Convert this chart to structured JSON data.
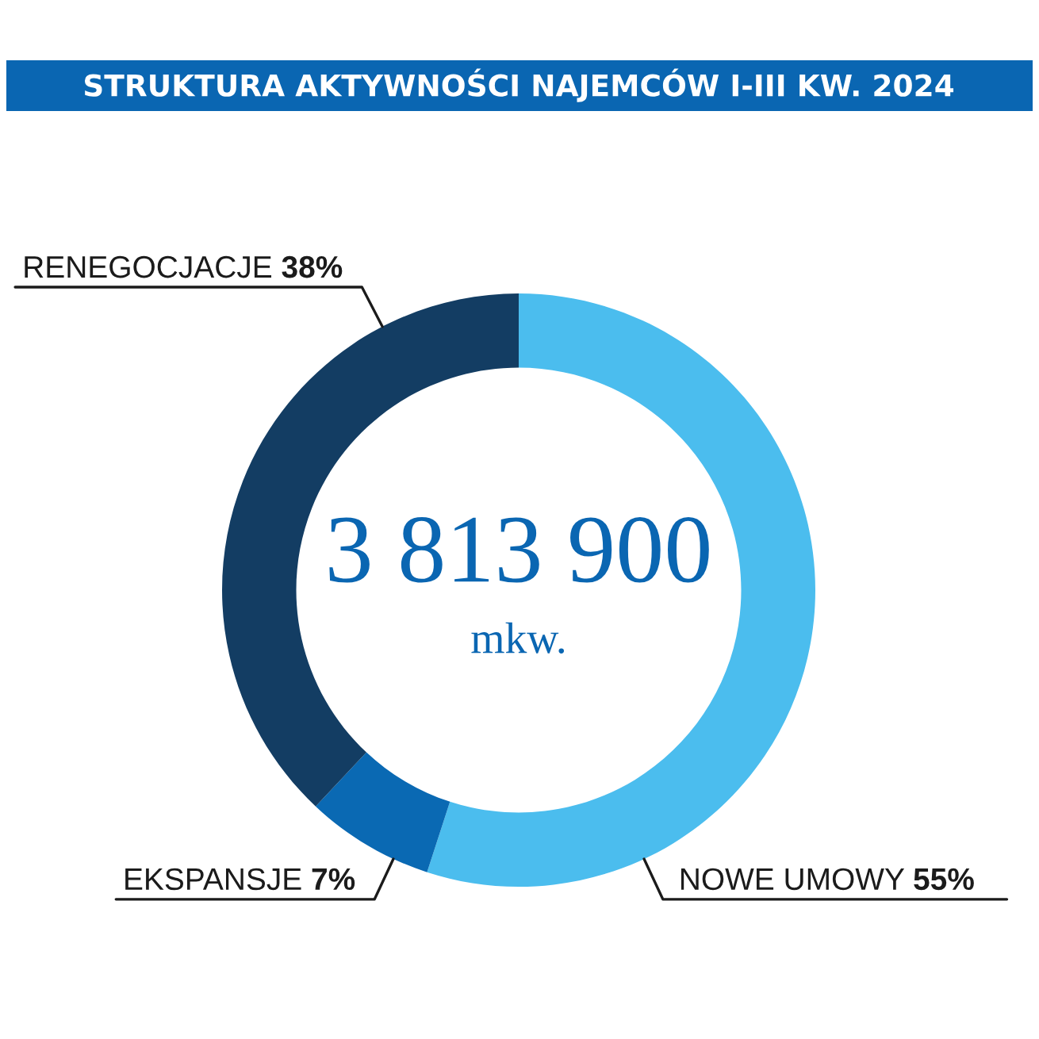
{
  "chart_data": {
    "type": "donut",
    "title": "STRUKTURA AKTYWNOŚCI NAJEMCÓW I-III KW. 2024",
    "categories": [
      "NOWE UMOWY",
      "EKSPANSJE",
      "RENEGOCJACJE"
    ],
    "values": [
      55,
      7,
      38
    ],
    "colors": [
      "#4bbdee",
      "#0a69b3",
      "#133d63"
    ],
    "value_labels": [
      "55%",
      "7%",
      "38%"
    ],
    "annotations": [
      "3 813 900",
      "mkw."
    ]
  }
}
